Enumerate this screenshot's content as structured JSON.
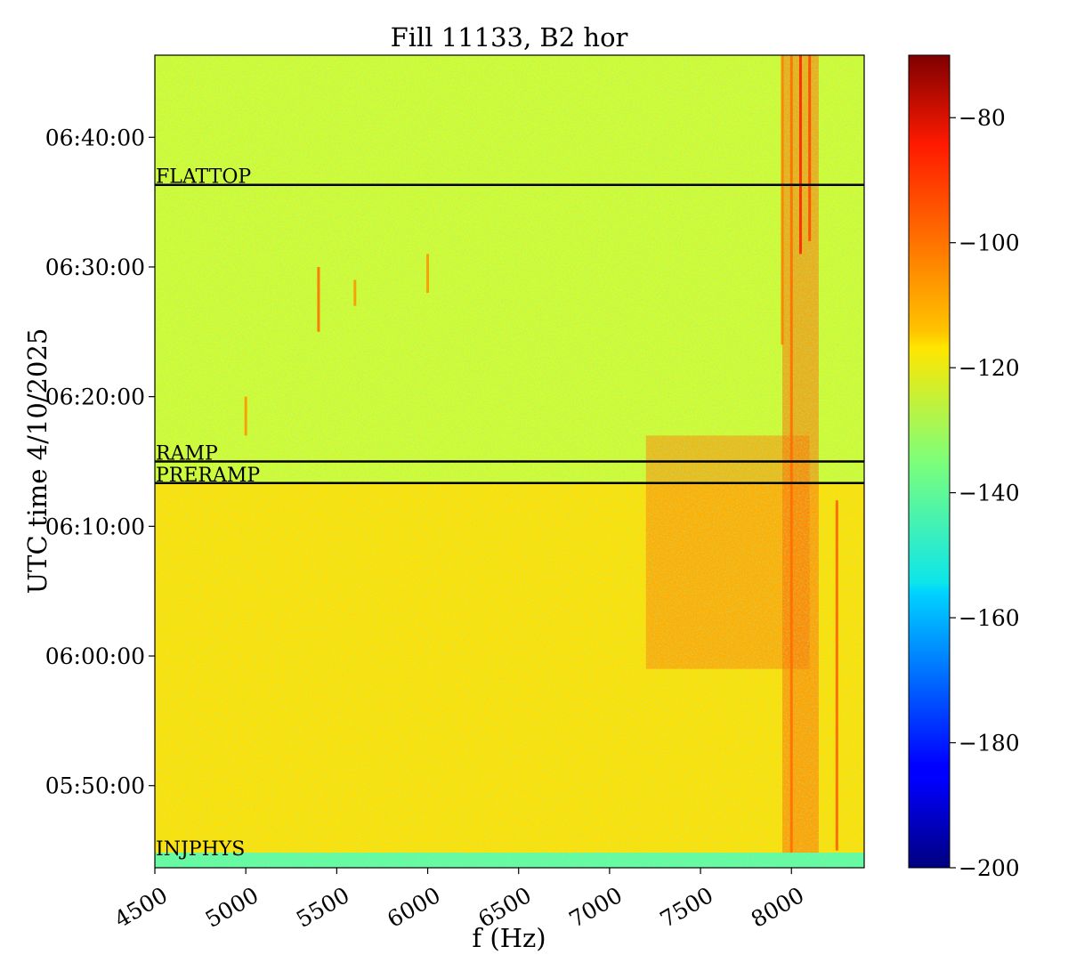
{
  "chart_data": {
    "type": "heatmap",
    "title": "Fill 11133, B2 hor",
    "xlabel": "f (Hz)",
    "ylabel": "UTC time 4/10/2025",
    "x_range": [
      4500,
      8400
    ],
    "x_ticks": [
      4500,
      5000,
      5500,
      6000,
      6500,
      7000,
      7500,
      8000
    ],
    "y_range": [
      "05:43:40",
      "06:46:20"
    ],
    "y_ticks": [
      "05:50:00",
      "06:00:00",
      "06:10:00",
      "06:20:00",
      "06:30:00",
      "06:40:00"
    ],
    "colormap": "jet",
    "colorbar": {
      "range": [
        -200,
        -70
      ],
      "ticks": [
        -200,
        -180,
        -160,
        -140,
        -120,
        -100,
        -80
      ],
      "tick_labels": [
        "−200",
        "−180",
        "−160",
        "−140",
        "−120",
        "−100",
        "−80"
      ]
    },
    "phase_markers": [
      {
        "label": "FLATTOP",
        "time": "06:36:20"
      },
      {
        "label": "RAMP",
        "time": "06:15:00"
      },
      {
        "label": "PRERAMP",
        "time": "06:13:20"
      },
      {
        "label": "INJPHYS",
        "time": "05:44:30"
      }
    ],
    "region_levels": [
      {
        "from": "05:43:40",
        "to": "05:44:50",
        "level": -140
      },
      {
        "from": "05:44:50",
        "to": "06:13:20",
        "level": -115
      },
      {
        "from": "06:13:20",
        "to": "06:46:20",
        "level": -125
      }
    ],
    "hot_spots": [
      {
        "from_f": 7200,
        "to_f": 8100,
        "from_t": "05:59:00",
        "to_t": "06:17:00",
        "level": -103
      },
      {
        "from_f": 7950,
        "to_f": 8150,
        "from_t": "05:44:50",
        "to_t": "06:46:20",
        "level": -100
      }
    ],
    "spectral_lines": [
      {
        "f": 8050,
        "from_t": "06:31:00",
        "to_t": "06:46:20",
        "level": -90
      },
      {
        "f": 8100,
        "from_t": "06:32:00",
        "to_t": "06:46:20",
        "level": -95
      },
      {
        "f": 8000,
        "from_t": "05:44:50",
        "to_t": "06:46:20",
        "level": -100
      },
      {
        "f": 7950,
        "from_t": "06:24:00",
        "to_t": "06:46:20",
        "level": -102
      },
      {
        "f": 8250,
        "from_t": "05:45:00",
        "to_t": "06:12:00",
        "level": -98
      },
      {
        "f": 5400,
        "from_t": "06:25:00",
        "to_t": "06:30:00",
        "level": -100
      },
      {
        "f": 5600,
        "from_t": "06:27:00",
        "to_t": "06:29:00",
        "level": -105
      },
      {
        "f": 6000,
        "from_t": "06:28:00",
        "to_t": "06:31:00",
        "level": -105
      },
      {
        "f": 5000,
        "from_t": "06:17:00",
        "to_t": "06:20:00",
        "level": -105
      }
    ]
  }
}
